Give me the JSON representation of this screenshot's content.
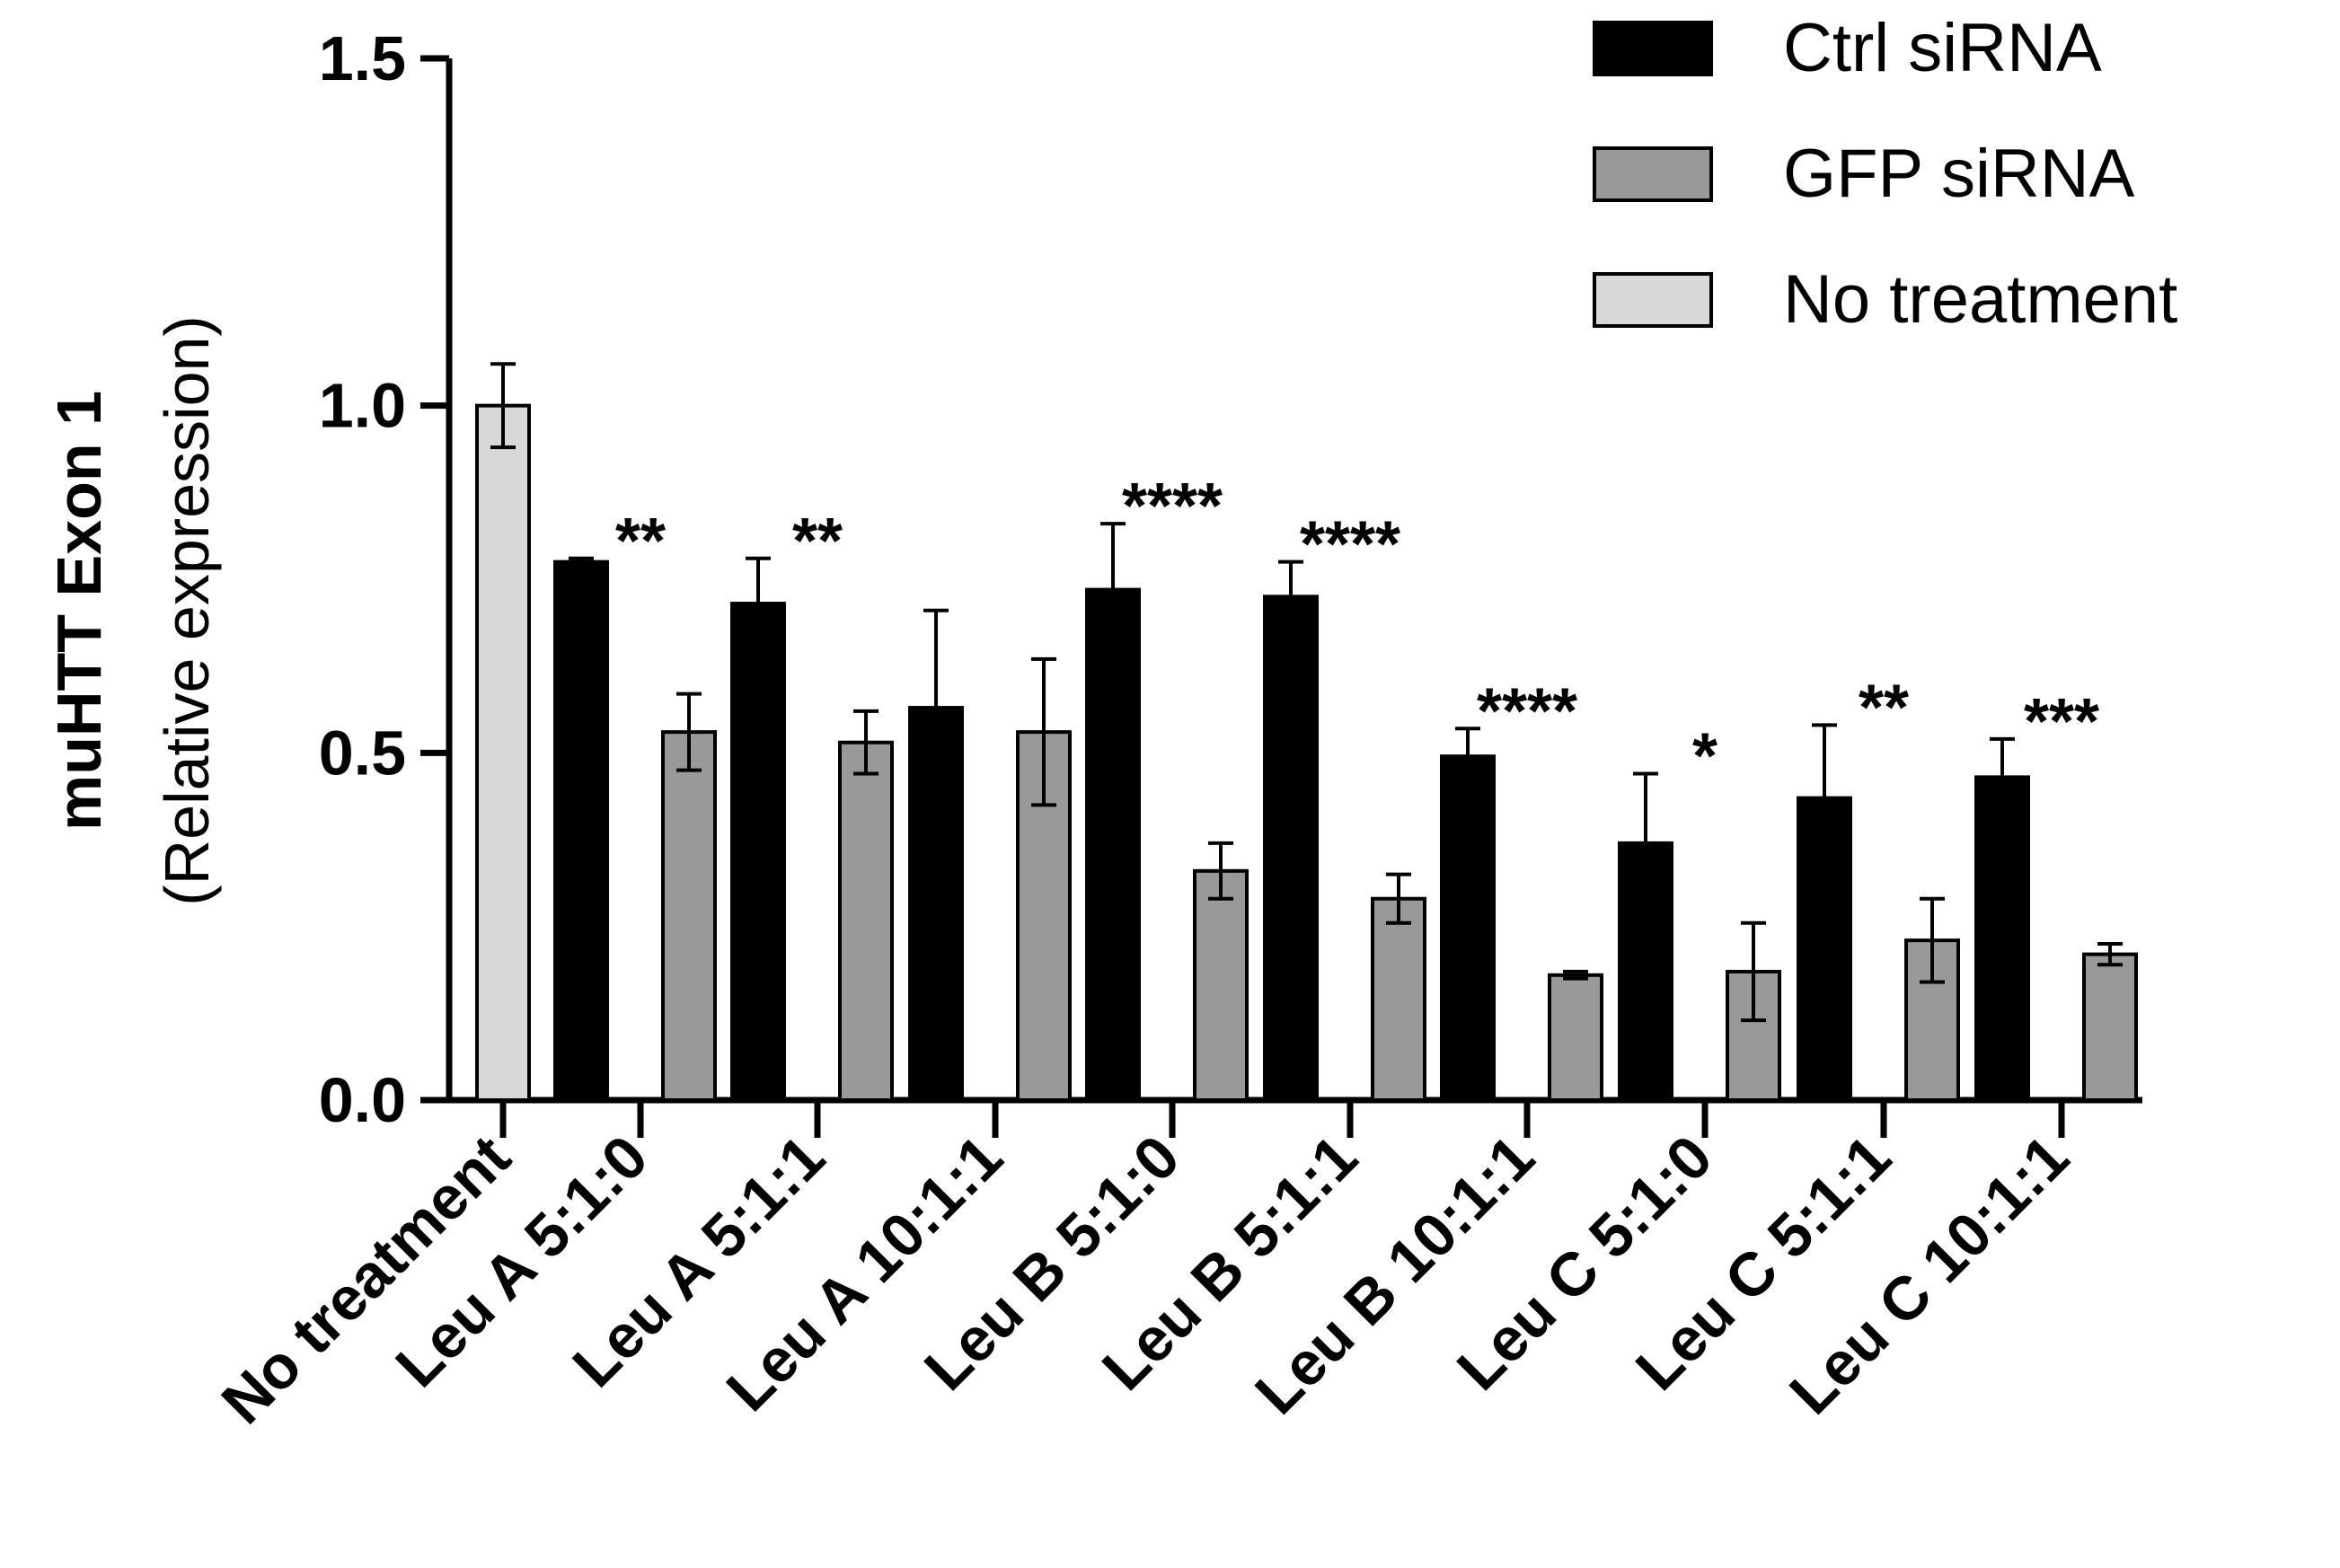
{
  "chart_data": {
    "type": "bar",
    "ylabel": "muHTT Exon 1",
    "ylabel_sub": "(Relative expression)",
    "ylim": [
      0,
      1.5
    ],
    "yticks": [
      0.0,
      0.5,
      1.0,
      1.5
    ],
    "ytick_labels": [
      "0.0",
      "0.5",
      "1.0",
      "1.5"
    ],
    "legend_position": "top-right",
    "series": [
      {
        "name": "Ctrl siRNA",
        "color": "#000000"
      },
      {
        "name": "GFP siRNA",
        "color": "#999999"
      },
      {
        "name": "No treatment",
        "color": "#d8d8d8"
      }
    ],
    "groups": [
      {
        "category": "No treatment",
        "significance": "",
        "bars": [
          {
            "series": "No treatment",
            "value": 1.0,
            "error": 0.06
          }
        ]
      },
      {
        "category": "Leu A 5:1:0",
        "significance": "**",
        "bars": [
          {
            "series": "Ctrl siRNA",
            "value": 0.775,
            "error": 0.005
          },
          {
            "series": "GFP siRNA",
            "value": 0.53,
            "error": 0.055
          }
        ]
      },
      {
        "category": "Leu A 5:1:1",
        "significance": "**",
        "bars": [
          {
            "series": "Ctrl siRNA",
            "value": 0.715,
            "error": 0.065
          },
          {
            "series": "GFP siRNA",
            "value": 0.515,
            "error": 0.045
          }
        ]
      },
      {
        "category": "Leu A 10:1:1",
        "significance": "",
        "bars": [
          {
            "series": "Ctrl siRNA",
            "value": 0.565,
            "error": 0.14
          },
          {
            "series": "GFP siRNA",
            "value": 0.53,
            "error": 0.105
          }
        ]
      },
      {
        "category": "Leu B 5:1:0",
        "significance": "****",
        "bars": [
          {
            "series": "Ctrl siRNA",
            "value": 0.735,
            "error": 0.095
          },
          {
            "series": "GFP siRNA",
            "value": 0.33,
            "error": 0.04
          }
        ]
      },
      {
        "category": "Leu B 5:1:1",
        "significance": "****",
        "bars": [
          {
            "series": "Ctrl siRNA",
            "value": 0.725,
            "error": 0.05
          },
          {
            "series": "GFP siRNA",
            "value": 0.29,
            "error": 0.035
          }
        ]
      },
      {
        "category": "Leu B 10:1:1",
        "significance": "****",
        "bars": [
          {
            "series": "Ctrl siRNA",
            "value": 0.495,
            "error": 0.04
          },
          {
            "series": "GFP siRNA",
            "value": 0.18,
            "error": 0.005
          }
        ]
      },
      {
        "category": "Leu C 5:1:0",
        "significance": "*",
        "bars": [
          {
            "series": "Ctrl siRNA",
            "value": 0.37,
            "error": 0.1
          },
          {
            "series": "GFP siRNA",
            "value": 0.185,
            "error": 0.07
          }
        ]
      },
      {
        "category": "Leu C 5:1:1",
        "significance": "**",
        "bars": [
          {
            "series": "Ctrl siRNA",
            "value": 0.435,
            "error": 0.105
          },
          {
            "series": "GFP siRNA",
            "value": 0.23,
            "error": 0.06
          }
        ]
      },
      {
        "category": "Leu C 10:1:1",
        "significance": "***",
        "bars": [
          {
            "series": "Ctrl siRNA",
            "value": 0.465,
            "error": 0.055
          },
          {
            "series": "GFP siRNA",
            "value": 0.21,
            "error": 0.015
          }
        ]
      }
    ]
  }
}
